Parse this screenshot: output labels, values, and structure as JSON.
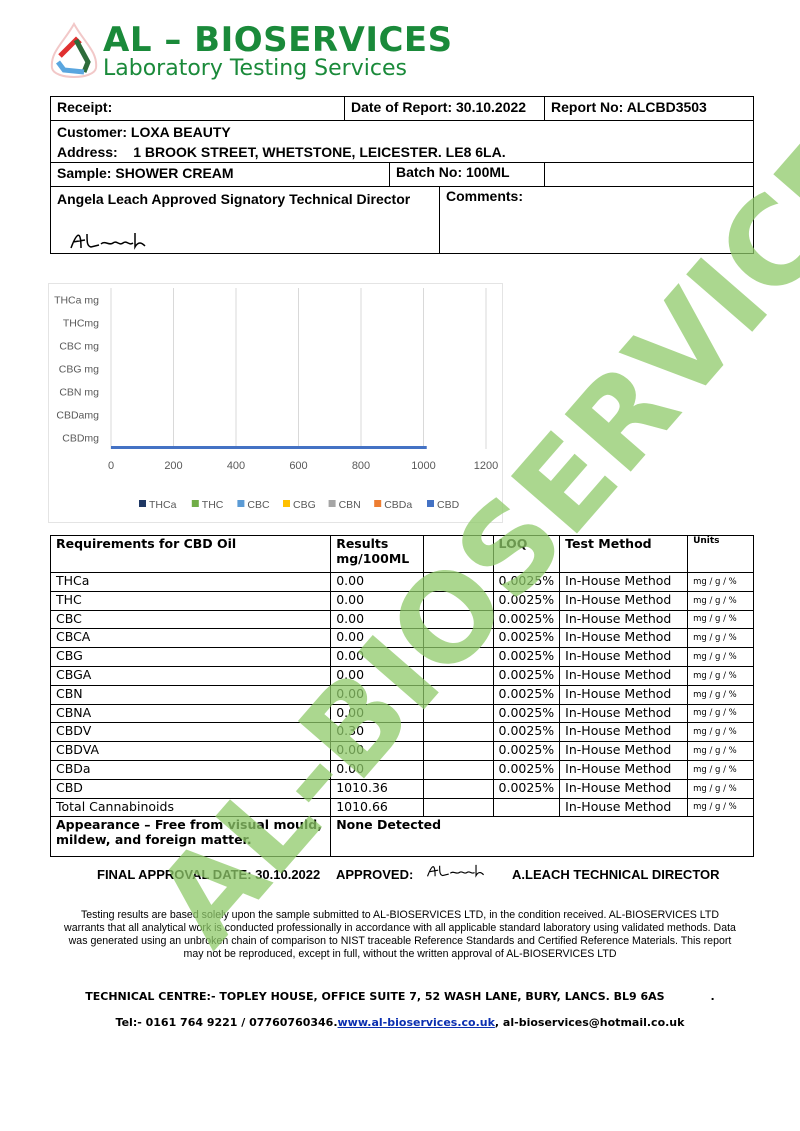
{
  "logo": {
    "title": "AL – BIOSERVICES",
    "subtitle": "Laboratory Testing Services"
  },
  "header": {
    "receipt": "Receipt:",
    "date_of_report": "Date of Report: 30.10.2022",
    "report_no": "Report No: ALCBD3503",
    "customer": "Customer: LOXA BEAUTY",
    "address": "Address:    1 BROOK STREET, WHETSTONE, LEICESTER. LE8 6LA.",
    "sample": "Sample: SHOWER CREAM",
    "batch": "Batch No: 100ML",
    "signatory": "Angela Leach Approved Signatory Technical Director",
    "comments": "Comments:",
    "signature": "ALeach"
  },
  "chart_data": {
    "type": "bar",
    "orientation": "horizontal",
    "categories": [
      "THCa mg",
      "THCmg",
      "CBC mg",
      "CBG mg",
      "CBN mg",
      "CBDamg",
      "CBDmg"
    ],
    "series": [
      {
        "name": "THCa",
        "color": "#1f3864",
        "values": [
          0,
          0,
          0,
          0,
          0,
          0,
          0
        ]
      },
      {
        "name": "THC",
        "color": "#70ad47",
        "values": [
          0,
          0,
          0,
          0,
          0,
          0,
          0
        ]
      },
      {
        "name": "CBC",
        "color": "#5b9bd5",
        "values": [
          0,
          0,
          0,
          0,
          0,
          0,
          0
        ]
      },
      {
        "name": "CBG",
        "color": "#ffc000",
        "values": [
          0,
          0,
          0,
          0,
          0,
          0,
          0
        ]
      },
      {
        "name": "CBN",
        "color": "#a5a5a5",
        "values": [
          0,
          0,
          0,
          0,
          0,
          0,
          0
        ]
      },
      {
        "name": "CBDa",
        "color": "#ed7d31",
        "values": [
          0,
          0,
          0,
          0,
          0,
          0,
          0
        ]
      },
      {
        "name": "CBD",
        "color": "#4472c4",
        "values": [
          0,
          0,
          0,
          0,
          0,
          0,
          1010.36
        ]
      }
    ],
    "xticks": [
      "0",
      "200",
      "400",
      "600",
      "800",
      "1000",
      "1200"
    ],
    "xlim": [
      0,
      1200
    ],
    "grid": true,
    "legend": "bottom"
  },
  "results": {
    "headers": [
      "Requirements for CBD Oil",
      "Results mg/100ML",
      "",
      "LOQ",
      "Test Method",
      "Units"
    ],
    "rows": [
      [
        "THCa",
        "0.00",
        "",
        "0.0025%",
        "In-House Method",
        "mg / g / %"
      ],
      [
        "THC",
        "0.00",
        "",
        "0.0025%",
        "In-House Method",
        "mg / g / %"
      ],
      [
        "CBC",
        "0.00",
        "",
        "0.0025%",
        "In-House Method",
        "mg / g / %"
      ],
      [
        "CBCA",
        "0.00",
        "",
        "0.0025%",
        "In-House Method",
        "mg / g / %"
      ],
      [
        "CBG",
        "0.00",
        "",
        "0.0025%",
        "In-House Method",
        "mg / g / %"
      ],
      [
        "CBGA",
        "0.00",
        "",
        "0.0025%",
        "In-House Method",
        "mg / g / %"
      ],
      [
        "CBN",
        "0.00",
        "",
        "0.0025%",
        "In-House Method",
        "mg / g / %"
      ],
      [
        "CBNA",
        "0.00",
        "",
        "0.0025%",
        "In-House Method",
        "mg / g / %"
      ],
      [
        "CBDV",
        "0.30",
        "",
        "0.0025%",
        "In-House Method",
        "mg / g / %"
      ],
      [
        "CBDVA",
        "0.00",
        "",
        "0.0025%",
        "In-House Method",
        "mg / g / %"
      ],
      [
        "CBDa",
        "0.00",
        "",
        "0.0025%",
        "In-House Method",
        "mg / g / %"
      ],
      [
        "CBD",
        "1010.36",
        "",
        "0.0025%",
        "In-House Method",
        "mg / g / %"
      ],
      [
        "Total Cannabinoids",
        "1010.66",
        "",
        "",
        "In-House Method",
        "mg / g / %"
      ]
    ],
    "appearance_label": "Appearance – Free from visual mould, mildew, and foreign matter.",
    "appearance_value": "None Detected"
  },
  "approval": {
    "date": "FINAL APPROVAL DATE: 30.10.2022",
    "approved": "APPROVED:",
    "signature": "ALeach",
    "signer": "A.LEACH TECHNICAL DIRECTOR"
  },
  "disclaimer": "Testing results are based solely upon the sample submitted to AL-BIOSERVICES LTD, in the condition received. AL-BIOSERVICES LTD warrants that all analytical work is conducted professionally in accordance with all applicable standard laboratory using validated methods. Data was generated using an unbroken chain of comparison to NIST traceable Reference Standards and Certified Reference Materials. This report may not be reproduced, except in full, without the written approval of AL-BIOSERVICES LTD",
  "footer": {
    "address": "TECHNICAL CENTRE:- TOPLEY HOUSE, OFFICE SUITE 7, 52 WASH LANE, BURY, LANCS. BL9 6AS            .",
    "tel": "Tel:- 0161 764 9221 / 07760760346.",
    "website": "www.al-bioservices.co.uk",
    "email": ",  al-bioservices@hotmail.co.uk"
  },
  "watermark": "AL-BIOSERVICES"
}
